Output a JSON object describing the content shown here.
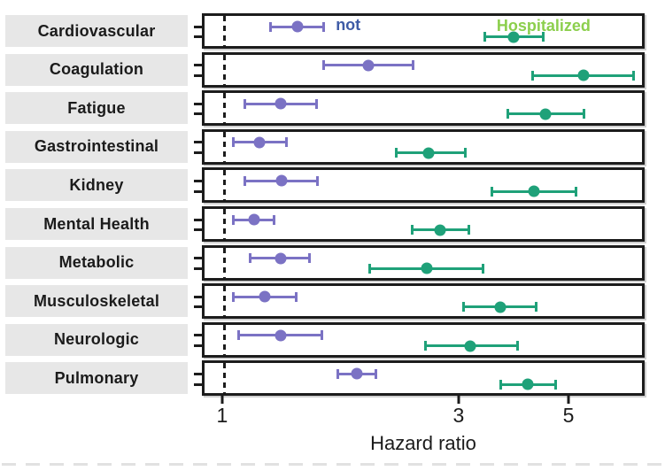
{
  "chart_data": {
    "type": "scatter",
    "subtype": "forest-plot",
    "title": "",
    "xlabel": "Hazard ratio",
    "x_scale": "log",
    "x_ticks": [
      "1",
      "3",
      "5"
    ],
    "x_tick_values": [
      1,
      3,
      5
    ],
    "x_domain": [
      0.91,
      7.12
    ],
    "reference_line_x": 1,
    "grid": "off",
    "legend_position": "inside-first-panel",
    "categories": [
      "Cardiovascular",
      "Coagulation",
      "Fatigue",
      "Gastrointestinal",
      "Kidney",
      "Mental Health",
      "Metabolic",
      "Musculoskeletal",
      "Neurologic",
      "Pulmonary"
    ],
    "series": [
      {
        "name": "not",
        "color": "#7b72c4",
        "values": [
          1.41,
          1.97,
          1.3,
          1.18,
          1.31,
          1.15,
          1.3,
          1.21,
          1.3,
          1.86
        ],
        "ci_low": [
          1.24,
          1.59,
          1.1,
          1.04,
          1.1,
          1.04,
          1.13,
          1.04,
          1.07,
          1.7
        ],
        "ci_high": [
          1.59,
          2.43,
          1.54,
          1.34,
          1.55,
          1.26,
          1.49,
          1.4,
          1.58,
          2.04
        ]
      },
      {
        "name": "Hospitalized",
        "color": "#1fa179",
        "values": [
          3.9,
          5.4,
          4.53,
          2.61,
          4.28,
          2.76,
          2.59,
          3.65,
          3.18,
          4.16
        ],
        "ci_low": [
          3.4,
          4.25,
          3.79,
          2.24,
          3.52,
          2.42,
          1.98,
          3.08,
          2.57,
          3.66
        ],
        "ci_high": [
          4.47,
          6.85,
          5.43,
          3.1,
          5.21,
          3.15,
          3.37,
          4.33,
          3.97,
          4.74
        ]
      }
    ],
    "annotations": {
      "not_label": "not",
      "not_label_color": "#3e5ba6",
      "hospitalized_label": "Hospitalized",
      "hospitalized_label_color": "#8ccf4d"
    },
    "colors": {
      "panel_border": "#1c1c1c",
      "category_box_bg": "#e7e7e7",
      "text": "#1b1b1b"
    }
  }
}
